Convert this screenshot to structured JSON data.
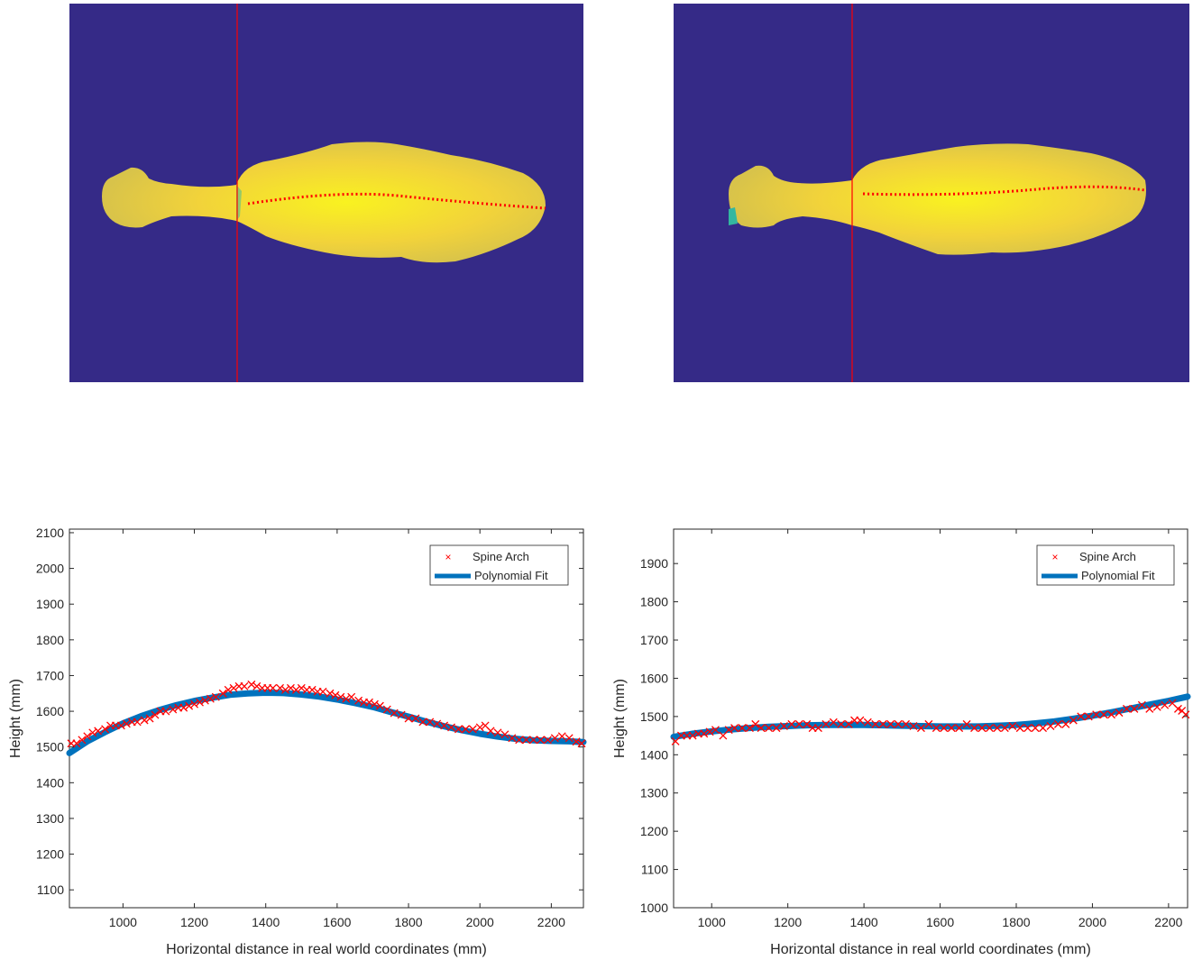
{
  "colors": {
    "background_map": "#352a87",
    "body_fill": "#f2d33a",
    "body_center": "#f9f220",
    "body_edge": "#c9bf4c",
    "body_teal": "#33b7a0",
    "crosshair": "#ff0000",
    "spine_marker": "#ff0000",
    "fit_line": "#0072bd",
    "axis": "#262626",
    "tick_text": "#262626"
  },
  "images": [
    {
      "name": "depth-image-left",
      "description_icon": "depth-map-icon"
    },
    {
      "name": "depth-image-right",
      "description_icon": "depth-map-icon"
    }
  ],
  "chart_data": [
    {
      "type": "scatter",
      "xlabel": "Horizontal distance in real world coordinates (mm)",
      "ylabel": "Height (mm)",
      "xlim": [
        850,
        2290
      ],
      "ylim": [
        1050,
        2110
      ],
      "xticks": [
        1000,
        1200,
        1400,
        1600,
        1800,
        2000,
        2200
      ],
      "yticks": [
        1100,
        1200,
        1300,
        1400,
        1500,
        1600,
        1700,
        1800,
        1900,
        2000,
        2100
      ],
      "grid": false,
      "legend_position": "top-right",
      "legend": [
        "Spine Arch",
        "Polynomial Fit"
      ],
      "series": [
        {
          "name": "Spine Arch",
          "kind": "marker",
          "color": "#ff0000",
          "x": [
            855,
            870,
            885,
            900,
            915,
            930,
            950,
            965,
            980,
            995,
            1010,
            1025,
            1040,
            1060,
            1075,
            1090,
            1105,
            1120,
            1140,
            1155,
            1170,
            1185,
            1200,
            1215,
            1230,
            1245,
            1260,
            1280,
            1295,
            1310,
            1325,
            1340,
            1360,
            1375,
            1390,
            1405,
            1420,
            1440,
            1455,
            1470,
            1485,
            1500,
            1515,
            1530,
            1545,
            1560,
            1580,
            1595,
            1610,
            1625,
            1640,
            1660,
            1675,
            1690,
            1705,
            1720,
            1740,
            1760,
            1780,
            1800,
            1820,
            1840,
            1860,
            1880,
            1900,
            1920,
            1940,
            1960,
            1980,
            2000,
            2015,
            2030,
            2050,
            2070,
            2090,
            2110,
            2130,
            2150,
            2170,
            2190,
            2210,
            2230,
            2250,
            2270,
            2285
          ],
          "y": [
            1510,
            1510,
            1520,
            1530,
            1540,
            1545,
            1550,
            1560,
            1560,
            1560,
            1565,
            1570,
            1570,
            1575,
            1580,
            1590,
            1600,
            1600,
            1605,
            1610,
            1610,
            1615,
            1620,
            1625,
            1630,
            1635,
            1640,
            1650,
            1660,
            1665,
            1670,
            1670,
            1675,
            1670,
            1665,
            1665,
            1665,
            1665,
            1660,
            1665,
            1660,
            1665,
            1660,
            1660,
            1655,
            1655,
            1650,
            1645,
            1640,
            1635,
            1640,
            1630,
            1625,
            1625,
            1620,
            1615,
            1605,
            1595,
            1590,
            1580,
            1580,
            1570,
            1570,
            1565,
            1560,
            1555,
            1550,
            1550,
            1550,
            1555,
            1560,
            1545,
            1540,
            1535,
            1525,
            1520,
            1520,
            1520,
            1520,
            1520,
            1525,
            1530,
            1525,
            1515,
            1510
          ]
        },
        {
          "name": "Polynomial Fit",
          "kind": "line",
          "color": "#0072bd",
          "x": [
            850,
            900,
            950,
            1000,
            1050,
            1100,
            1150,
            1200,
            1250,
            1300,
            1350,
            1400,
            1450,
            1500,
            1550,
            1600,
            1650,
            1700,
            1750,
            1800,
            1850,
            1900,
            1950,
            2000,
            2050,
            2100,
            2150,
            2200,
            2250,
            2290
          ],
          "y": [
            1483,
            1516,
            1542,
            1566,
            1586,
            1603,
            1617,
            1629,
            1638,
            1646,
            1650,
            1652,
            1651,
            1647,
            1641,
            1633,
            1623,
            1612,
            1598,
            1585,
            1571,
            1558,
            1547,
            1537,
            1529,
            1523,
            1519,
            1517,
            1516,
            1514
          ]
        }
      ]
    },
    {
      "type": "scatter",
      "xlabel": "Horizontal distance in real world coordinates (mm)",
      "ylabel": "Height (mm)",
      "xlim": [
        900,
        2250
      ],
      "ylim": [
        1000,
        1990
      ],
      "xticks": [
        1000,
        1200,
        1400,
        1600,
        1800,
        2000,
        2200
      ],
      "yticks": [
        1000,
        1100,
        1200,
        1300,
        1400,
        1500,
        1600,
        1700,
        1800,
        1900
      ],
      "grid": false,
      "legend_position": "top-right",
      "legend": [
        "Spine Arch",
        "Polynomial Fit"
      ],
      "series": [
        {
          "name": "Spine Arch",
          "kind": "marker",
          "color": "#ff0000",
          "x": [
            905,
            920,
            935,
            950,
            965,
            980,
            995,
            1010,
            1030,
            1045,
            1060,
            1080,
            1100,
            1115,
            1130,
            1150,
            1170,
            1190,
            1210,
            1230,
            1250,
            1265,
            1280,
            1300,
            1320,
            1340,
            1360,
            1375,
            1390,
            1410,
            1430,
            1450,
            1470,
            1490,
            1510,
            1530,
            1550,
            1570,
            1590,
            1610,
            1630,
            1650,
            1670,
            1690,
            1710,
            1730,
            1750,
            1770,
            1790,
            1810,
            1830,
            1850,
            1870,
            1890,
            1910,
            1930,
            1950,
            1970,
            1990,
            2010,
            2030,
            2050,
            2070,
            2090,
            2110,
            2130,
            2150,
            2170,
            2190,
            2210,
            2225,
            2235,
            2245
          ],
          "y": [
            1435,
            1450,
            1450,
            1450,
            1455,
            1455,
            1460,
            1465,
            1450,
            1465,
            1470,
            1470,
            1470,
            1480,
            1470,
            1470,
            1470,
            1475,
            1480,
            1480,
            1480,
            1470,
            1470,
            1480,
            1485,
            1480,
            1480,
            1490,
            1490,
            1485,
            1480,
            1480,
            1480,
            1480,
            1480,
            1475,
            1470,
            1480,
            1470,
            1470,
            1470,
            1470,
            1480,
            1470,
            1470,
            1470,
            1470,
            1470,
            1475,
            1470,
            1470,
            1470,
            1470,
            1475,
            1480,
            1480,
            1490,
            1500,
            1500,
            1505,
            1505,
            1505,
            1510,
            1520,
            1520,
            1530,
            1520,
            1525,
            1530,
            1535,
            1520,
            1515,
            1505
          ]
        },
        {
          "name": "Polynomial Fit",
          "kind": "line",
          "color": "#0072bd",
          "x": [
            900,
            950,
            1000,
            1050,
            1100,
            1150,
            1200,
            1250,
            1300,
            1350,
            1400,
            1450,
            1500,
            1550,
            1600,
            1650,
            1700,
            1750,
            1800,
            1850,
            1900,
            1950,
            2000,
            2050,
            2100,
            2150,
            2200,
            2250
          ],
          "y": [
            1447,
            1455,
            1461,
            1466,
            1470,
            1473,
            1475,
            1477,
            1478,
            1478,
            1478,
            1477,
            1476,
            1475,
            1474,
            1474,
            1474,
            1476,
            1478,
            1482,
            1487,
            1494,
            1502,
            1511,
            1521,
            1531,
            1541,
            1552
          ]
        }
      ]
    }
  ]
}
